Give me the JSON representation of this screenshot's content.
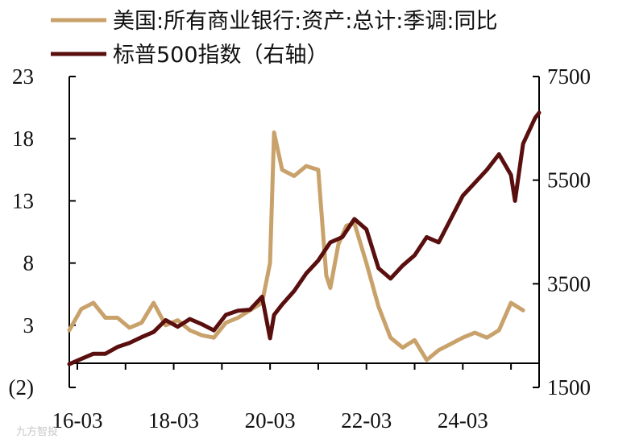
{
  "chart_data": {
    "type": "line",
    "title": "",
    "xlabel": "",
    "ylabel": "",
    "x_tick_labels": [
      "16-03",
      "18-03",
      "20-03",
      "22-03",
      "24-03"
    ],
    "left_axis": {
      "ylim": [
        -2,
        23
      ],
      "tick_values": [
        -2,
        3,
        8,
        13,
        18,
        23
      ],
      "tick_labels": [
        "(2)",
        "3",
        "8",
        "13",
        "18",
        "23"
      ],
      "negative_color": "#d40000"
    },
    "right_axis": {
      "ylim": [
        1500,
        7500
      ],
      "tick_values": [
        1500,
        3500,
        5500,
        7500
      ],
      "tick_labels": [
        "1500",
        "3500",
        "5500",
        "7500"
      ]
    },
    "legend_placement": "top-left",
    "series": [
      {
        "name": "美国:所有商业银行:资产:总计:季调:同比",
        "axis": "left",
        "color": "#c9a26b",
        "x": [
          "2016-01",
          "2016-04",
          "2016-07",
          "2016-10",
          "2017-01",
          "2017-04",
          "2017-07",
          "2017-10",
          "2018-01",
          "2018-04",
          "2018-07",
          "2018-10",
          "2019-01",
          "2019-04",
          "2019-07",
          "2019-10",
          "2020-01",
          "2020-03",
          "2020-04",
          "2020-06",
          "2020-09",
          "2020-12",
          "2021-03",
          "2021-05",
          "2021-06",
          "2021-08",
          "2021-10",
          "2021-12",
          "2022-03",
          "2022-06",
          "2022-09",
          "2022-12",
          "2023-03",
          "2023-06",
          "2023-09",
          "2023-12",
          "2024-03",
          "2024-06",
          "2024-09",
          "2024-12",
          "2025-03",
          "2025-06"
        ],
        "values": [
          2.6,
          4.3,
          4.8,
          3.6,
          3.6,
          2.8,
          3.2,
          4.8,
          3.0,
          3.4,
          2.6,
          2.2,
          2.0,
          3.2,
          3.6,
          4.2,
          4.8,
          8.0,
          18.5,
          15.5,
          15.0,
          15.8,
          15.5,
          7.0,
          6.0,
          9.5,
          11.0,
          11.2,
          8.0,
          4.5,
          2.0,
          1.2,
          1.8,
          0.2,
          1.0,
          1.5,
          2.0,
          2.4,
          2.0,
          2.6,
          4.8,
          4.2
        ]
      },
      {
        "name": "标普500指数（右轴）",
        "axis": "right",
        "color": "#5a0f0f",
        "x": [
          "2016-01",
          "2016-04",
          "2016-07",
          "2016-10",
          "2017-01",
          "2017-04",
          "2017-07",
          "2017-10",
          "2018-01",
          "2018-04",
          "2018-07",
          "2018-10",
          "2019-01",
          "2019-04",
          "2019-07",
          "2019-10",
          "2020-01",
          "2020-03",
          "2020-04",
          "2020-06",
          "2020-09",
          "2020-12",
          "2021-03",
          "2021-06",
          "2021-09",
          "2021-12",
          "2022-03",
          "2022-06",
          "2022-09",
          "2022-12",
          "2023-03",
          "2023-06",
          "2023-09",
          "2023-12",
          "2024-03",
          "2024-06",
          "2024-09",
          "2024-12",
          "2025-03",
          "2025-04",
          "2025-06",
          "2025-09",
          "2025-10"
        ],
        "values": [
          1950,
          2050,
          2150,
          2150,
          2280,
          2360,
          2470,
          2570,
          2800,
          2670,
          2820,
          2720,
          2600,
          2900,
          2980,
          3000,
          3250,
          2450,
          2900,
          3100,
          3360,
          3700,
          3950,
          4300,
          4400,
          4750,
          4550,
          3800,
          3600,
          3850,
          4050,
          4400,
          4300,
          4750,
          5200,
          5450,
          5700,
          6000,
          5600,
          5100,
          6200,
          6700,
          6800
        ]
      }
    ]
  },
  "watermark": "九方智投"
}
